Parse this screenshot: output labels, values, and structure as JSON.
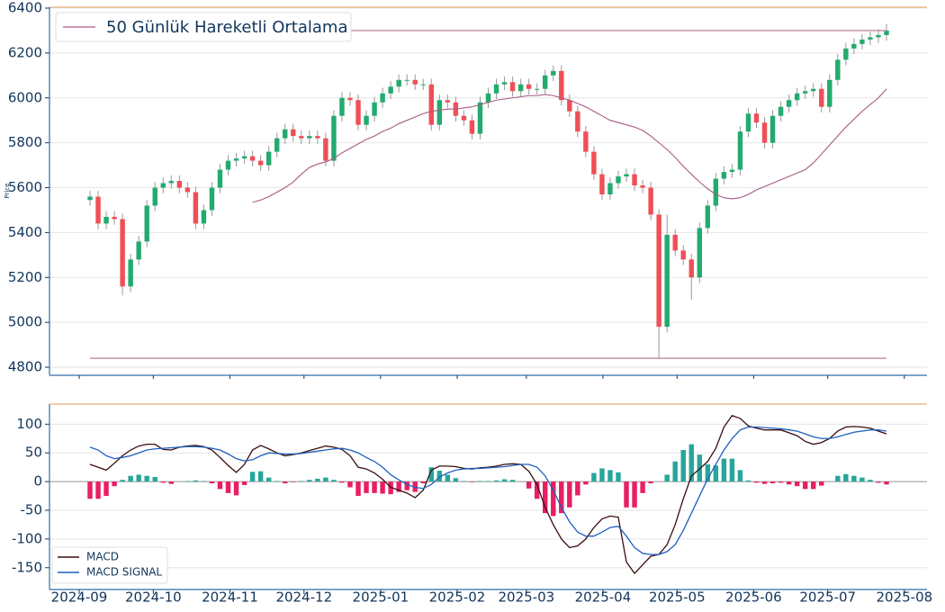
{
  "chart_data": [
    {
      "type": "candlestick",
      "ylabel": "Price",
      "up_color": "#22ab6e",
      "down_color": "#ef4f56",
      "open": [
        5545,
        5560,
        5440,
        5470,
        5460,
        5160,
        5280,
        5360,
        5520,
        5600,
        5620,
        5630,
        5600,
        5580,
        5440,
        5500,
        5600,
        5680,
        5720,
        5730,
        5740,
        5720,
        5700,
        5760,
        5820,
        5860,
        5830,
        5820,
        5830,
        5820,
        5720,
        5920,
        6000,
        5990,
        5880,
        5920,
        5980,
        6020,
        6050,
        6080,
        6080,
        6060,
        6060,
        5880,
        5990,
        5980,
        5920,
        5900,
        5840,
        5980,
        6020,
        6060,
        6070,
        6030,
        6060,
        6040,
        6040,
        6100,
        6120,
        5990,
        5940,
        5850,
        5760,
        5660,
        5570,
        5620,
        5650,
        5660,
        5610,
        5600,
        5480,
        4980,
        5390,
        5320,
        5280,
        5200,
        5420,
        5520,
        5640,
        5670,
        5680,
        5850,
        5930,
        5890,
        5800,
        5920,
        5960,
        5990,
        6020,
        6030,
        6040,
        5960,
        6080,
        6170,
        6220,
        6240,
        6260,
        6270,
        6280
      ],
      "high": [
        5585,
        5585,
        5495,
        5495,
        5485,
        5305,
        5385,
        5545,
        5625,
        5645,
        5655,
        5655,
        5625,
        5605,
        5525,
        5625,
        5705,
        5745,
        5755,
        5765,
        5765,
        5745,
        5785,
        5845,
        5885,
        5885,
        5855,
        5855,
        5855,
        5845,
        5945,
        6025,
        6025,
        6015,
        5945,
        6005,
        6045,
        6075,
        6105,
        6105,
        6105,
        6085,
        6085,
        6015,
        6015,
        6005,
        5945,
        5925,
        6005,
        6045,
        6085,
        6095,
        6095,
        6085,
        6085,
        6065,
        6125,
        6145,
        6145,
        6015,
        5965,
        5875,
        5785,
        5685,
        5645,
        5675,
        5685,
        5685,
        5635,
        5625,
        5505,
        5480,
        5415,
        5345,
        5305,
        5445,
        5545,
        5665,
        5695,
        5705,
        5875,
        5955,
        5955,
        5915,
        5945,
        5985,
        6015,
        6045,
        6055,
        6065,
        6065,
        6105,
        6195,
        6245,
        6265,
        6285,
        6295,
        6305,
        6330
      ],
      "low": [
        5520,
        5415,
        5415,
        5435,
        5120,
        5135,
        5255,
        5335,
        5495,
        5575,
        5595,
        5575,
        5555,
        5415,
        5415,
        5475,
        5575,
        5655,
        5695,
        5705,
        5695,
        5675,
        5675,
        5735,
        5795,
        5805,
        5795,
        5795,
        5795,
        5695,
        5695,
        5895,
        5965,
        5855,
        5855,
        5895,
        5955,
        5995,
        6025,
        6055,
        6035,
        6035,
        5855,
        5855,
        5955,
        5895,
        5875,
        5815,
        5815,
        5955,
        5995,
        6035,
        6005,
        6005,
        6015,
        6015,
        6015,
        6075,
        5965,
        5915,
        5825,
        5735,
        5635,
        5545,
        5545,
        5595,
        5625,
        5585,
        5575,
        5455,
        4835,
        4955,
        5295,
        5255,
        5100,
        5175,
        5395,
        5495,
        5615,
        5645,
        5655,
        5825,
        5865,
        5775,
        5775,
        5895,
        5935,
        5965,
        5995,
        6005,
        5935,
        5935,
        6055,
        6145,
        6195,
        6215,
        6235,
        6245,
        6255
      ],
      "close": [
        5560,
        5440,
        5470,
        5460,
        5160,
        5280,
        5360,
        5520,
        5600,
        5620,
        5630,
        5600,
        5580,
        5440,
        5500,
        5600,
        5680,
        5720,
        5730,
        5740,
        5720,
        5700,
        5760,
        5820,
        5860,
        5830,
        5820,
        5830,
        5820,
        5720,
        5920,
        6000,
        5990,
        5880,
        5920,
        5980,
        6020,
        6050,
        6080,
        6080,
        6060,
        6060,
        5880,
        5990,
        5980,
        5920,
        5900,
        5840,
        5980,
        6020,
        6060,
        6070,
        6030,
        6060,
        6040,
        6040,
        6100,
        6120,
        5990,
        5940,
        5850,
        5760,
        5660,
        5570,
        5620,
        5650,
        5660,
        5610,
        5600,
        5480,
        4980,
        5390,
        5320,
        5280,
        5200,
        5420,
        5520,
        5640,
        5670,
        5680,
        5850,
        5930,
        5890,
        5800,
        5920,
        5960,
        5990,
        6020,
        6030,
        6040,
        5960,
        6080,
        6170,
        6220,
        6240,
        6260,
        6270,
        6280,
        6300
      ],
      "series": [
        {
          "name": "50 Günlük Hareketli Ortalama",
          "color": "#a85a86",
          "values": [
            null,
            null,
            null,
            null,
            null,
            null,
            null,
            null,
            null,
            null,
            null,
            null,
            null,
            null,
            null,
            null,
            null,
            null,
            null,
            null,
            5535,
            5545,
            5560,
            5580,
            5600,
            5625,
            5660,
            5690,
            5705,
            5715,
            5730,
            5755,
            5775,
            5795,
            5815,
            5830,
            5850,
            5865,
            5885,
            5900,
            5915,
            5930,
            5940,
            5945,
            5950,
            5950,
            5955,
            5960,
            5970,
            5980,
            5990,
            5995,
            6000,
            6005,
            6010,
            6010,
            6015,
            6010,
            6000,
            5990,
            5975,
            5960,
            5940,
            5920,
            5900,
            5890,
            5880,
            5870,
            5855,
            5830,
            5800,
            5770,
            5735,
            5695,
            5660,
            5625,
            5595,
            5570,
            5555,
            5550,
            5555,
            5570,
            5590,
            5605,
            5620,
            5635,
            5650,
            5665,
            5680,
            5710,
            5750,
            5790,
            5830,
            5870,
            5905,
            5940,
            5970,
            6000,
            6040
          ]
        }
      ],
      "levels": [
        6300,
        4840
      ],
      "level_color": "#c48aa6",
      "ylim": [
        4764,
        6404
      ],
      "yticks": [
        4800,
        5000,
        5200,
        5400,
        5600,
        5800,
        6000,
        6200,
        6400
      ],
      "grid": true
    },
    {
      "type": "macd",
      "series": [
        {
          "name": "MACD",
          "color": "#3a0d0d",
          "values": [
            30,
            25,
            20,
            32,
            45,
            55,
            62,
            65,
            65,
            56,
            55,
            60,
            62,
            63,
            61,
            55,
            42,
            28,
            16,
            30,
            55,
            63,
            57,
            50,
            45,
            47,
            50,
            54,
            58,
            62,
            60,
            56,
            45,
            25,
            22,
            15,
            4,
            -10,
            -15,
            -20,
            -28,
            -15,
            20,
            27,
            27,
            26,
            23,
            22,
            24,
            25,
            27,
            30,
            31,
            30,
            18,
            -5,
            -45,
            -75,
            -100,
            -115,
            -112,
            -100,
            -80,
            -65,
            -60,
            -62,
            -140,
            -160,
            -145,
            -130,
            -127,
            -110,
            -75,
            -30,
            10,
            22,
            35,
            58,
            95,
            115,
            110,
            97,
            93,
            90,
            90,
            90,
            85,
            80,
            70,
            65,
            68,
            75,
            88,
            95,
            96,
            95,
            93,
            88,
            83
          ]
        },
        {
          "name": "MACD SIGNAL",
          "color": "#1f5fbf",
          "values": [
            60,
            55,
            45,
            40,
            42,
            45,
            50,
            55,
            57,
            58,
            59,
            60,
            61,
            61,
            60,
            58,
            55,
            48,
            40,
            36,
            38,
            45,
            50,
            49,
            48,
            48,
            49,
            51,
            53,
            55,
            57,
            58,
            55,
            50,
            42,
            35,
            25,
            12,
            3,
            -5,
            -10,
            -12,
            -5,
            8,
            15,
            20,
            22,
            23,
            23,
            24,
            25,
            26,
            28,
            30,
            30,
            25,
            10,
            -15,
            -45,
            -70,
            -88,
            -95,
            -95,
            -88,
            -80,
            -78,
            -95,
            -115,
            -125,
            -127,
            -127,
            -122,
            -110,
            -85,
            -55,
            -25,
            5,
            30,
            55,
            75,
            90,
            95,
            95,
            94,
            93,
            92,
            90,
            88,
            83,
            78,
            75,
            75,
            78,
            82,
            86,
            88,
            90,
            90,
            88
          ]
        }
      ],
      "histogram": [
        -30,
        -30,
        -25,
        -8,
        3,
        10,
        12,
        10,
        8,
        -2,
        -4,
        0,
        1,
        2,
        1,
        -3,
        -13,
        -20,
        -24,
        -6,
        17,
        18,
        7,
        1,
        -3,
        -1,
        1,
        3,
        5,
        7,
        3,
        -2,
        -10,
        -25,
        -20,
        -20,
        -21,
        -22,
        -18,
        -15,
        -18,
        -3,
        25,
        19,
        12,
        6,
        1,
        -1,
        1,
        1,
        2,
        4,
        3,
        0,
        -12,
        -30,
        -55,
        -60,
        -55,
        -45,
        -24,
        -5,
        15,
        23,
        20,
        16,
        -45,
        -45,
        -20,
        -3,
        0,
        12,
        35,
        55,
        65,
        47,
        30,
        28,
        40,
        40,
        20,
        2,
        -2,
        -4,
        -3,
        -2,
        -5,
        -8,
        -13,
        -13,
        -7,
        0,
        10,
        13,
        10,
        7,
        3,
        -2,
        -5
      ],
      "hist_up_color": "#26a69a",
      "hist_down_color": "#e91e63",
      "ylim": [
        -188,
        135
      ],
      "yticks": [
        -150,
        -100,
        -50,
        0,
        50,
        100
      ],
      "grid": true,
      "xticks": [
        "2024-09",
        "2024-10",
        "2024-11",
        "2024-12",
        "2025-01",
        "2025-02",
        "2025-03",
        "2025-04",
        "2025-05",
        "2025-06",
        "2025-07",
        "2025-08"
      ]
    }
  ]
}
